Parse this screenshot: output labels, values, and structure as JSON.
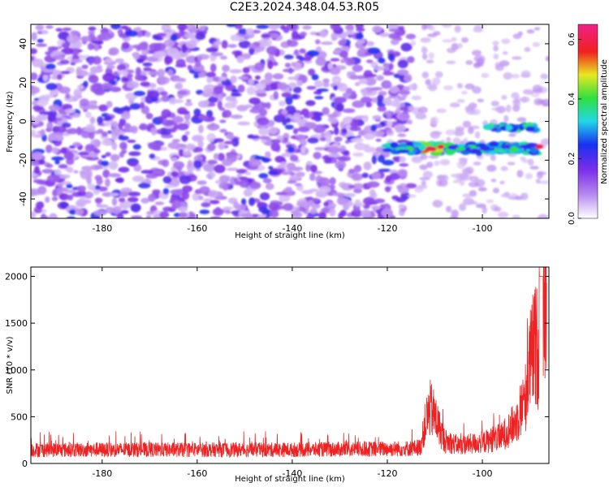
{
  "page": {
    "title": "C2E3.2024.348.04.53.R05"
  },
  "chart_data": [
    {
      "type": "heatmap",
      "title": "C2E3.2024.348.04.53.R05",
      "xlabel": "Height of straight line (km)",
      "ylabel": "Frequency (Hz)",
      "xlim": [
        -195,
        -86
      ],
      "ylim": [
        -50,
        50
      ],
      "xticks": [
        -180,
        -160,
        -140,
        -120,
        -100
      ],
      "yticks": [
        -40,
        -20,
        0,
        20,
        40
      ],
      "colorbar": {
        "label": "Normalized spectral amplitude",
        "range": [
          0.0,
          0.65
        ],
        "ticks": [
          0.0,
          0.2,
          0.4,
          0.6
        ],
        "colormap": "white-purple-blue-cyan-green-yellow-red-magenta"
      },
      "features": {
        "noise_region_x": [
          -195,
          -115
        ],
        "sparse_region_x": [
          -115,
          -86
        ],
        "signal_band_frequency_hz": -14,
        "signal_band_x": [
          -120,
          -88
        ],
        "secondary_band_frequency_hz": -3,
        "secondary_band_x": [
          -99,
          -88
        ],
        "peak_amplitude": 0.65,
        "peak_x": [
          -111,
          -88
        ]
      },
      "colors": {
        "low": "#ffffff",
        "purple": "#8a3ee6",
        "blue": "#1a30f0",
        "cyan": "#20e0e0",
        "green": "#30e040",
        "yellow": "#f0e020",
        "red": "#f02020",
        "magenta": "#f0208a"
      }
    },
    {
      "type": "line",
      "xlabel": "Height of straight line (km)",
      "ylabel": "SNR (10 * v/v)",
      "xlim": [
        -195,
        -86
      ],
      "ylim": [
        0,
        2100
      ],
      "xticks": [
        -180,
        -160,
        -140,
        -120,
        -100
      ],
      "yticks": [
        0,
        500,
        1000,
        1500,
        2000
      ],
      "grid": false,
      "line_color": "#ee2222",
      "series": [
        {
          "x": [
            -195,
            -190,
            -180,
            -170,
            -160,
            -150,
            -140,
            -130,
            -120,
            -115,
            -113,
            -112,
            -111,
            -110,
            -108,
            -105,
            -100,
            -96,
            -93,
            -91,
            -90,
            -89,
            -88,
            -87.5,
            -87,
            -86.5
          ],
          "y": [
            150,
            150,
            150,
            150,
            150,
            150,
            150,
            155,
            160,
            165,
            180,
            450,
            600,
            520,
            250,
            200,
            230,
            290,
            450,
            700,
            1100,
            1300,
            1250,
            2000,
            2000,
            1700
          ]
        }
      ]
    }
  ]
}
